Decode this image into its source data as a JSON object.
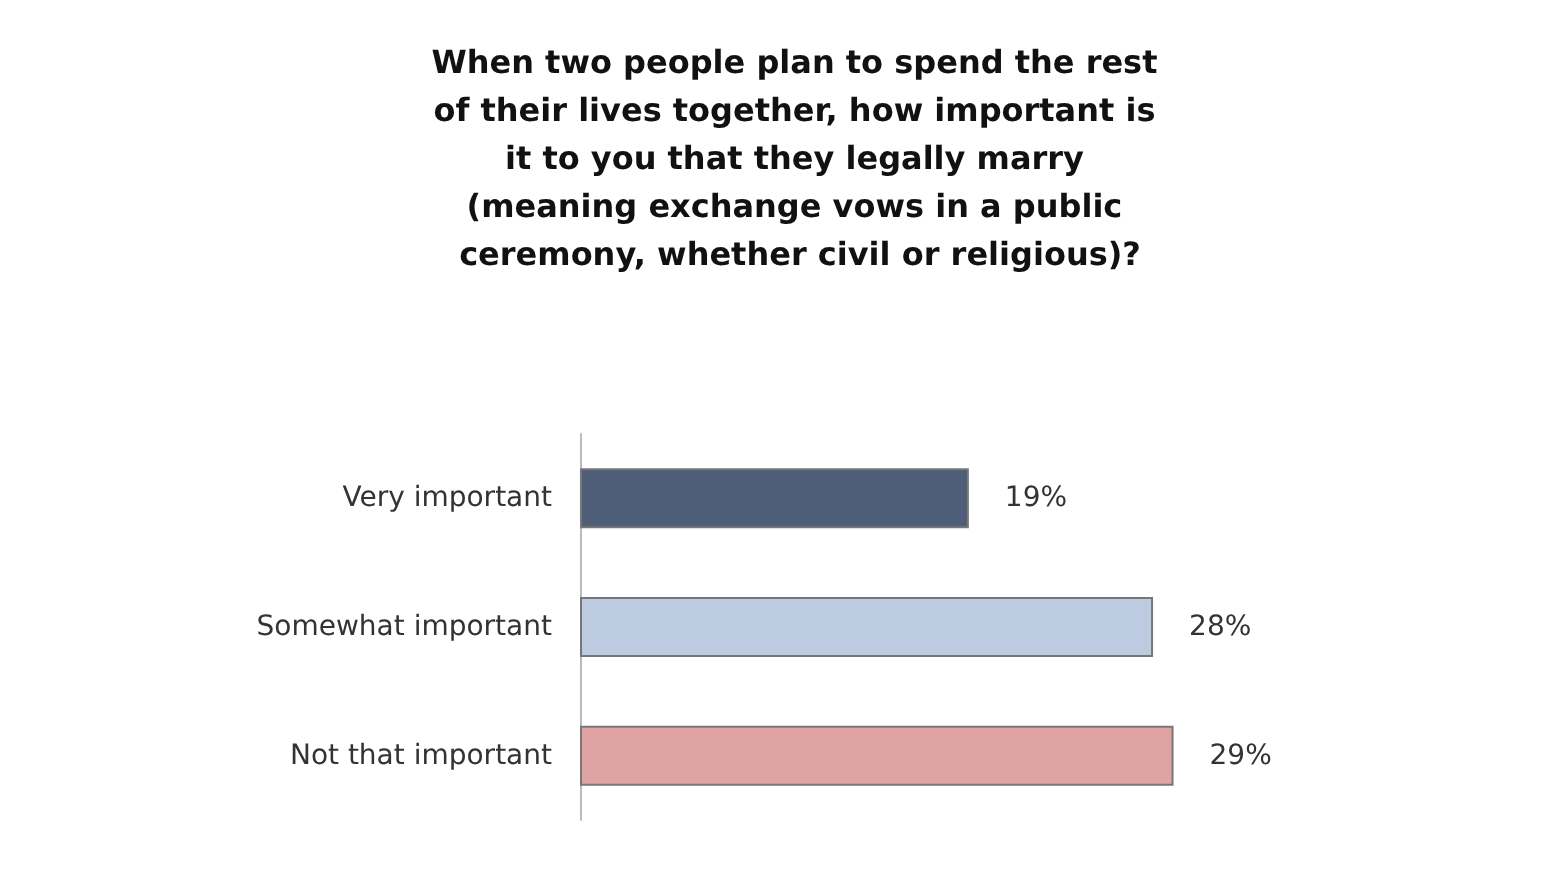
{
  "chart_data": {
    "type": "bar",
    "orientation": "horizontal",
    "title": "When two people plan to spend the rest of their lives together, how important is it to you that they legally marry (meaning exchange vows in a public ceremony, whether civil or religious)?",
    "categories": [
      "Very important",
      "Somewhat important",
      "Not that important"
    ],
    "values": [
      19,
      28,
      29
    ],
    "colors": [
      "#4f5e78",
      "#bccbe0",
      "#e0a3a3"
    ],
    "value_labels": [
      "19%",
      "28%",
      "29%"
    ],
    "tick_labels": "y",
    "grid": false
  }
}
